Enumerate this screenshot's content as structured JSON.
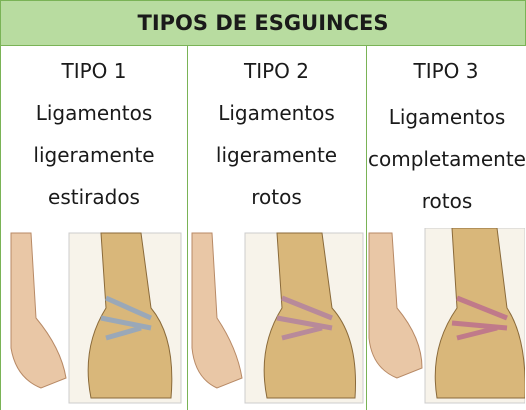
{
  "table": {
    "title": "TIPOS DE ESGUINCES",
    "columns": [
      {
        "title": "TIPO 1",
        "description": "Ligamentos ligeramente estirados"
      },
      {
        "title": "TIPO 2",
        "description": "Ligamentos ligeramente rotos"
      },
      {
        "title": "TIPO 3",
        "description": "Ligamentos completamente rotos"
      }
    ]
  }
}
